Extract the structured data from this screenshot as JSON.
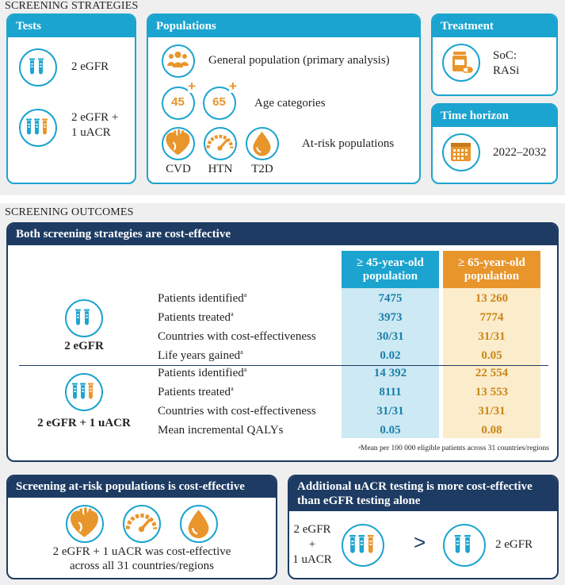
{
  "strategies": {
    "section_title": "SCREENING STRATEGIES",
    "tests": {
      "title": "Tests",
      "items": [
        "2 eGFR",
        "2 eGFR +",
        "1 uACR"
      ]
    },
    "populations": {
      "title": "Populations",
      "general": "General population (primary analysis)",
      "age_45": "45",
      "age_65": "65",
      "plus": "+",
      "age_label": "Age categories",
      "risk_label": "At-risk populations",
      "risk_items": [
        "CVD",
        "HTN",
        "T2D"
      ]
    },
    "treatment": {
      "title": "Treatment",
      "line1": "SoC:",
      "line2": "RASi"
    },
    "time_horizon": {
      "title": "Time horizon",
      "value": "2022–2032"
    }
  },
  "outcomes": {
    "section_title": "SCREENING OUTCOMES",
    "main_title": "Both screening strategies are cost-effective",
    "col_45": [
      "≥ 45-year-old",
      "population"
    ],
    "col_65": [
      "≥ 65-year-old",
      "population"
    ],
    "group1": {
      "label": "2 eGFR",
      "rows": [
        {
          "label": "Patients identified",
          "sup": "a",
          "v45": "7475",
          "v65": "13 260"
        },
        {
          "label": "Patients treated",
          "sup": "a",
          "v45": "3973",
          "v65": "7774"
        },
        {
          "label": "Countries with cost-effectiveness",
          "sup": "",
          "v45": "30/31",
          "v65": "31/31"
        },
        {
          "label": "Life years gained",
          "sup": "a",
          "v45": "0.02",
          "v65": "0.05"
        }
      ]
    },
    "group2": {
      "label": "2 eGFR + 1 uACR",
      "rows": [
        {
          "label": "Patients identified",
          "sup": "a",
          "v45": "14 392",
          "v65": "22 554"
        },
        {
          "label": "Patients treated",
          "sup": "a",
          "v45": "8111",
          "v65": "13 553"
        },
        {
          "label": "Countries with cost-effectiveness",
          "sup": "",
          "v45": "31/31",
          "v65": "31/31"
        },
        {
          "label": "Mean incremental QALYs",
          "sup": "",
          "v45": "0.05",
          "v65": "0.08"
        }
      ]
    },
    "footnote_sup": "a",
    "footnote": "Mean per 100 000 eligible patients across 31 countries/regions",
    "at_risk": {
      "title": "Screening at-risk populations is cost-effective",
      "line1": "2 eGFR + 1 uACR was cost-effective",
      "line2": "across all 31 countries/regions"
    },
    "additional": {
      "title1": "Additional uACR testing is more cost-effective",
      "title2": "than eGFR testing alone",
      "left1": "2 eGFR",
      "left2": "+",
      "left3": "1 uACR",
      "gt": ">",
      "right": "2 eGFR"
    }
  },
  "colors": {
    "teal": "#1ba4cf",
    "navy": "#1d3b63",
    "orange": "#e8952b",
    "col45_bg": "#cde9f4",
    "col65_bg": "#fbeccb",
    "col45_text": "#1a7fa8",
    "col65_text": "#c98519"
  }
}
